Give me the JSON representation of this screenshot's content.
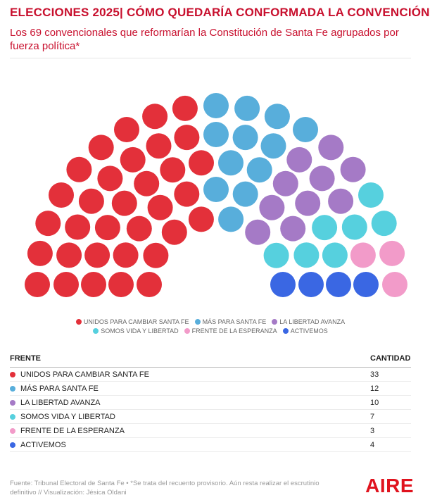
{
  "header": {
    "title": "ELECCIONES 2025| CÓMO QUEDARÍA CONFORMADA LA CONVENCIÓN",
    "subtitle": " Los 69 convencionales que reformarían la Constitución de Santa Fe agrupados por fuerza política*"
  },
  "chart_data": {
    "type": "parliament",
    "total_seats": 69,
    "series": [
      {
        "name": "UNIDOS PARA CAMBIAR SANTA FE",
        "value": 33,
        "color": "#e3303a"
      },
      {
        "name": "MÁS PARA SANTA FE",
        "value": 12,
        "color": "#58aedb"
      },
      {
        "name": "LA LIBERTAD AVANZA",
        "value": 10,
        "color": "#a57ac6"
      },
      {
        "name": "SOMOS VIDA Y LIBERTAD",
        "value": 7,
        "color": "#56d0de"
      },
      {
        "name": "FRENTE DE LA ESPERANZA",
        "value": 3,
        "color": "#f29bc9"
      },
      {
        "name": "ACTIVEMOS",
        "value": 4,
        "color": "#3a67e3"
      }
    ],
    "legend_position": "bottom"
  },
  "table": {
    "headers": {
      "name": "FRENTE",
      "count": "CANTIDAD"
    },
    "rows": [
      {
        "name": "UNIDOS PARA CAMBIAR SANTA FE",
        "count": "33",
        "color": "#e3303a"
      },
      {
        "name": "MÁS PARA SANTA FE",
        "count": "12",
        "color": "#58aedb"
      },
      {
        "name": "LA LIBERTAD AVANZA",
        "count": "10",
        "color": "#a57ac6"
      },
      {
        "name": "SOMOS VIDA Y LIBERTAD",
        "count": "7",
        "color": "#56d0de"
      },
      {
        "name": "FRENTE DE LA ESPERANZA",
        "count": "3",
        "color": "#f29bc9"
      },
      {
        "name": "ACTIVEMOS",
        "count": "4",
        "color": "#3a67e3"
      }
    ]
  },
  "footer": {
    "note": "Fuente: Tribunal Electoral de Santa Fe • *Se trata del recuento provisorio. Aún resta realizar el escrutinio definitivo // Visualización: Jésica Oldani",
    "brand": "AIRE"
  }
}
